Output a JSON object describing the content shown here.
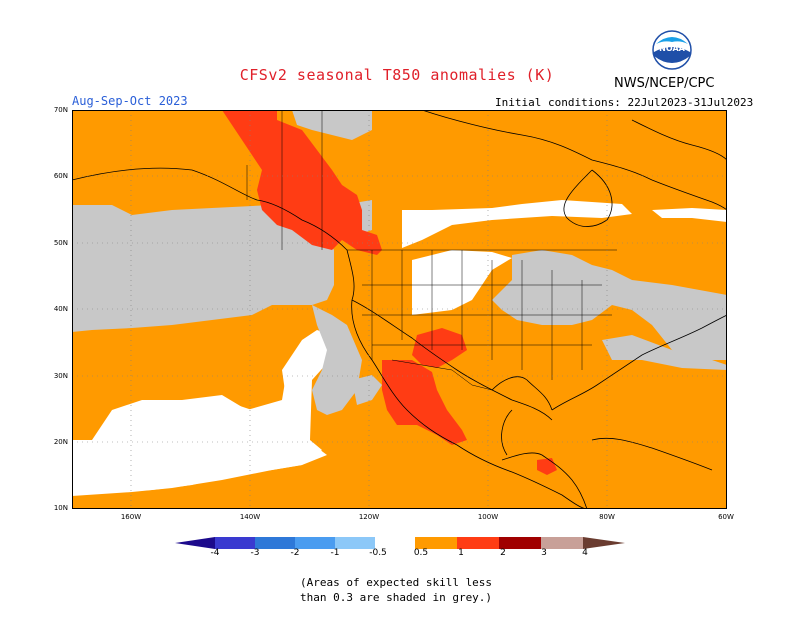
{
  "header": {
    "title": "CFSv2 seasonal T850 anomalies (K)",
    "agency": "NWS/NCEP/CPC",
    "period": "Aug-Sep-Oct 2023",
    "initial_conditions": "Initial conditions: 22Jul2023-31Jul2023",
    "logo_text": "NOAA"
  },
  "axes": {
    "lat_labels": [
      "70N",
      "60N",
      "50N",
      "40N",
      "30N",
      "20N",
      "10N"
    ],
    "lon_labels": [
      "160W",
      "140W",
      "120W",
      "100W",
      "80W",
      "60W"
    ]
  },
  "colorbar": {
    "ticks": [
      "-4",
      "-3",
      "-2",
      "-1",
      "-0.5",
      "0.5",
      "1",
      "2",
      "3",
      "4"
    ],
    "colors": {
      "lt_-4": "#1c0a8c",
      "-4_-3": "#3a3ad0",
      "-3_-2": "#2e78d8",
      "-2_-1": "#4a9cf0",
      "-1_-0.5": "#8cc8f8",
      "-0.5_0.5": "#ffffff",
      "0.5_1": "#ff9a00",
      "1_2": "#ff3c14",
      "2_3": "#a00000",
      "3_4": "#c8a098",
      "gt_4": "#6a3c30"
    },
    "low_skill_color": "#c8c8c8"
  },
  "footnote": {
    "line1": "(Areas of expected skill less",
    "line2": "than 0.3 are shaded in grey.)"
  }
}
